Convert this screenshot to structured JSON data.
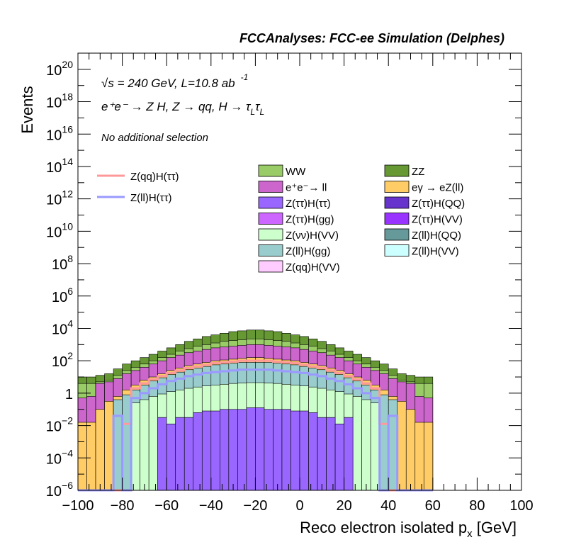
{
  "chart_data": {
    "type": "histogram",
    "title": "FCCAnalyses: FCC-ee Simulation (Delphes)",
    "annotations": {
      "energy_prefix": "√s",
      "energy_rest": " = 240 GeV, L=10.8 ab",
      "energy_exp": "-1",
      "process": "e⁺e⁻ → Z H, Z → qq, H → τ",
      "process_sub": "L",
      "process_tau2": "τ",
      "process_sub2": "L",
      "selection": "No additional selection"
    },
    "xlabel": "Reco electron isolated p",
    "xlabel_sub": "x",
    "xlabel_unit": " [GeV]",
    "ylabel": "Events",
    "xlim": [
      -100,
      100
    ],
    "ylim": [
      1e-06,
      1e+21
    ],
    "y_scale": "log",
    "x_ticks": [
      "−100",
      "−80",
      "−60",
      "−40",
      "−20",
      "0",
      "20",
      "40",
      "60",
      "80",
      "100"
    ],
    "y_ticks": [
      {
        "base": "10",
        "exp": "−6"
      },
      {
        "base": "10",
        "exp": "−4"
      },
      {
        "base": "10",
        "exp": "−2"
      },
      {
        "base": "1",
        "exp": ""
      },
      {
        "base": "10",
        "exp": "2"
      },
      {
        "base": "10",
        "exp": "4"
      },
      {
        "base": "10",
        "exp": "6"
      },
      {
        "base": "10",
        "exp": "8"
      },
      {
        "base": "10",
        "exp": "10"
      },
      {
        "base": "10",
        "exp": "12"
      },
      {
        "base": "10",
        "exp": "14"
      },
      {
        "base": "10",
        "exp": "16"
      },
      {
        "base": "10",
        "exp": "18"
      },
      {
        "base": "10",
        "exp": "20"
      }
    ],
    "bin_width": 4,
    "stack_tops_log10": {
      "ZZ": [
        1.0,
        1.0,
        1.1,
        1.2,
        1.5,
        1.8,
        2.0,
        2.2,
        2.4,
        2.6,
        2.8,
        3.0,
        3.2,
        3.35,
        3.5,
        3.6,
        3.7,
        3.8,
        3.85,
        3.9,
        3.9,
        3.85,
        3.8,
        3.7,
        3.6,
        3.5,
        3.35,
        3.2,
        3.0,
        2.8,
        2.6,
        2.4,
        2.2,
        2.0,
        1.8,
        1.5,
        1.2,
        1.1,
        1.0,
        1.0
      ],
      "WW": [
        0.6,
        0.6,
        0.7,
        0.8,
        1.1,
        1.4,
        1.6,
        1.8,
        2.0,
        2.2,
        2.4,
        2.6,
        2.75,
        2.9,
        3.0,
        3.1,
        3.2,
        3.25,
        3.3,
        3.35,
        3.35,
        3.3,
        3.25,
        3.2,
        3.1,
        3.0,
        2.9,
        2.75,
        2.6,
        2.4,
        2.2,
        2.0,
        1.8,
        1.6,
        1.4,
        1.1,
        0.8,
        0.7,
        0.6,
        0.6
      ],
      "ll": [
        -0.3,
        -0.2,
        0.6,
        0.7,
        0.9,
        1.2,
        1.4,
        1.6,
        1.8,
        2.0,
        2.2,
        2.35,
        2.5,
        2.6,
        2.7,
        2.8,
        2.85,
        2.9,
        2.95,
        3.0,
        3.0,
        2.95,
        2.9,
        2.85,
        2.8,
        2.7,
        2.6,
        2.5,
        2.35,
        2.2,
        2.0,
        1.8,
        1.6,
        1.4,
        1.2,
        0.9,
        0.7,
        0.6,
        -0.2,
        -0.3
      ],
      "eZll": [
        -1.8,
        -1.8,
        -1.0,
        -0.5,
        -0.2,
        0.2,
        0.5,
        0.8,
        1.0,
        1.2,
        1.4,
        1.55,
        1.7,
        1.8,
        1.9,
        2.0,
        2.05,
        2.1,
        2.15,
        2.2,
        2.2,
        2.15,
        2.1,
        2.05,
        2.0,
        1.9,
        1.8,
        1.7,
        1.55,
        1.4,
        1.2,
        1.0,
        0.8,
        0.5,
        0.2,
        -0.2,
        -0.5,
        -1.0,
        -1.8,
        -1.8
      ],
      "llHgg": [
        -6.1,
        -6.1,
        -6.1,
        -6.1,
        -0.4,
        -0.1,
        0.2,
        0.5,
        0.75,
        0.95,
        1.15,
        1.3,
        1.45,
        1.55,
        1.65,
        1.75,
        1.8,
        1.85,
        1.9,
        1.9,
        1.9,
        1.9,
        1.85,
        1.8,
        1.75,
        1.65,
        1.55,
        1.45,
        1.3,
        1.15,
        0.95,
        0.75,
        0.5,
        0.2,
        -0.1,
        -0.4,
        -6.1,
        -6.1,
        -6.1,
        -6.1
      ],
      "nuVV": [
        -6.1,
        -6.1,
        -6.1,
        -6.1,
        -6.1,
        -6.1,
        -0.6,
        -0.4,
        -0.2,
        -0.05,
        0.1,
        0.2,
        0.3,
        0.38,
        0.45,
        0.5,
        0.55,
        0.6,
        0.62,
        0.65,
        0.65,
        0.62,
        0.6,
        0.55,
        0.5,
        0.45,
        0.38,
        0.3,
        0.2,
        0.1,
        -0.05,
        -0.2,
        -0.4,
        -0.6,
        -6.1,
        -6.1,
        -6.1,
        -6.1,
        -6.1,
        -6.1
      ],
      "tautau": [
        -6.1,
        -6.1,
        -6.1,
        -6.1,
        -6.1,
        -6.1,
        -6.1,
        -6.1,
        -6.1,
        -1.5,
        -1.9,
        -1.5,
        -1.5,
        -1.2,
        -1.1,
        -1.1,
        -1.0,
        -1.0,
        -1.0,
        -0.9,
        -0.9,
        -1.0,
        -1.0,
        -1.0,
        -1.1,
        -1.1,
        -1.2,
        -1.5,
        -1.5,
        -1.9,
        -1.5,
        -6.1,
        -6.1,
        -6.1,
        -6.1,
        -6.1,
        -6.1,
        -6.1,
        -6.1,
        -6.1
      ]
    },
    "signal_lines_log10": {
      "Z(qq)H(ττ)": [
        -6.1,
        -6.1,
        -6.1,
        -6.1,
        -6.1,
        -1.9,
        0.3,
        0.6,
        0.85,
        1.05,
        1.25,
        1.4,
        1.55,
        1.65,
        1.75,
        1.85,
        1.9,
        1.95,
        2.0,
        2.0,
        2.0,
        2.0,
        1.95,
        1.9,
        1.85,
        1.75,
        1.65,
        1.55,
        1.4,
        1.25,
        1.05,
        0.85,
        0.6,
        0.3,
        -1.9,
        -6.1,
        -6.1,
        -6.1,
        -6.1,
        -6.1
      ],
      "Z(ll)H(ττ)": [
        -6.1,
        -6.1,
        -6.1,
        -6.1,
        -1.4,
        -6.1,
        -0.3,
        0.0,
        0.3,
        0.55,
        0.75,
        0.9,
        1.05,
        1.15,
        1.25,
        1.3,
        1.35,
        1.4,
        1.45,
        1.45,
        1.45,
        1.45,
        1.4,
        1.35,
        1.3,
        1.25,
        1.15,
        1.05,
        0.9,
        0.75,
        0.55,
        0.3,
        0.0,
        -0.3,
        -6.1,
        -1.4,
        -6.1,
        -6.1,
        -6.1,
        -6.1
      ]
    },
    "legend_lines": [
      {
        "name": "Z(qq)H(ττ)",
        "color": "#ff9999"
      },
      {
        "name": "Z(ll)H(ττ)",
        "color": "#9999ff"
      }
    ],
    "legend_fills": [
      {
        "name": "WW",
        "color": "#99cc66"
      },
      {
        "name": "ZZ",
        "color": "#669933"
      },
      {
        "name": "e⁺e⁻→ ll",
        "color": "#cc66cc"
      },
      {
        "name": "eγ → eZ(ll)",
        "color": "#ffcc66"
      },
      {
        "name": "Z(ττ)H(ττ)",
        "color": "#9966ff"
      },
      {
        "name": "Z(ττ)H(QQ)",
        "color": "#6633cc"
      },
      {
        "name": "Z(ττ)H(gg)",
        "color": "#cc66ff"
      },
      {
        "name": "Z(ττ)H(VV)",
        "color": "#9933ff"
      },
      {
        "name": "Z(νν)H(VV)",
        "color": "#ccffcc"
      },
      {
        "name": "Z(ll)H(QQ)",
        "color": "#669999"
      },
      {
        "name": "Z(ll)H(gg)",
        "color": "#99cccc"
      },
      {
        "name": "Z(ll)H(VV)",
        "color": "#ccffff"
      },
      {
        "name": "Z(qq)H(VV)",
        "color": "#ffccff"
      }
    ]
  }
}
